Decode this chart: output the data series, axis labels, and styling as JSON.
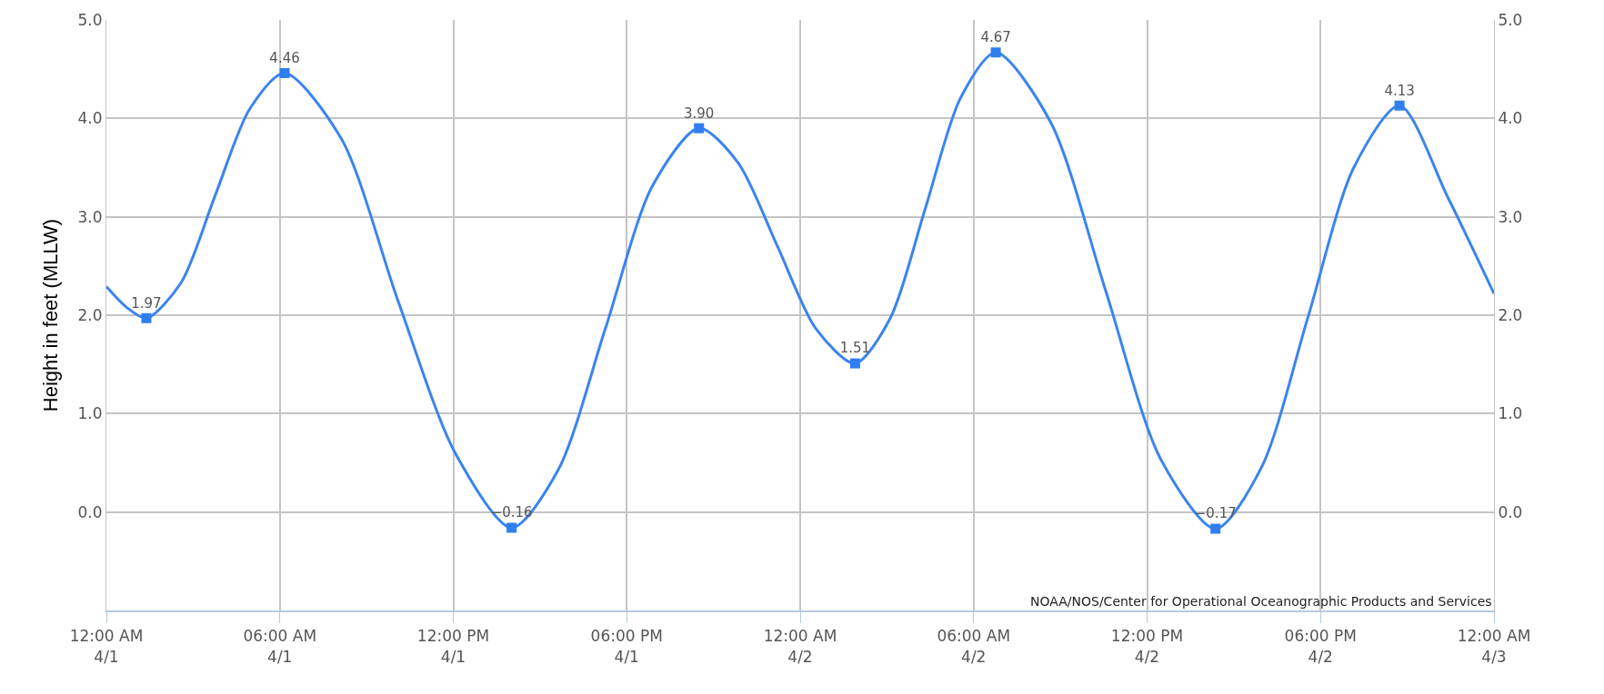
{
  "chart_data": {
    "type": "line",
    "ylabel": "Height in feet (MLLW)",
    "xlim": [
      "--04-01T00:00",
      "--04-03T00:00"
    ],
    "xticks": [
      {
        "value": "--04-01T00:00",
        "label": "12:00 AM\n4/1"
      },
      {
        "value": "--04-01T06:00",
        "label": "06:00 AM\n4/1"
      },
      {
        "value": "--04-01T12:00",
        "label": "12:00 PM\n4/1"
      },
      {
        "value": "--04-01T18:00",
        "label": "06:00 PM\n4/1"
      },
      {
        "value": "--04-02T00:00",
        "label": "12:00 AM\n4/2"
      },
      {
        "value": "--04-02T06:00",
        "label": "06:00 AM\n4/2"
      },
      {
        "value": "--04-02T12:00",
        "label": "12:00 PM\n4/2"
      },
      {
        "value": "--04-02T18:00",
        "label": "06:00 PM\n4/2"
      },
      {
        "value": "--04-03T00:00",
        "label": "12:00 AM\n4/3"
      }
    ],
    "ylim": [
      -1,
      5
    ],
    "yticks": [
      {
        "value": -1,
        "label": null
      },
      {
        "value": 0,
        "label": "0.0"
      },
      {
        "value": 1,
        "label": "1.0"
      },
      {
        "value": 2,
        "label": "2.0"
      },
      {
        "value": 3,
        "label": "3.0"
      },
      {
        "value": 4,
        "label": "4.0"
      },
      {
        "value": 5,
        "label": "5.0"
      }
    ],
    "y2lim": [
      -1,
      5
    ],
    "y2ticks": [
      {
        "value": -1,
        "label": null
      },
      {
        "value": 0,
        "label": "0.0"
      },
      {
        "value": 1,
        "label": "1.0"
      },
      {
        "value": 2,
        "label": "2.0"
      },
      {
        "value": 3,
        "label": "3.0"
      },
      {
        "value": 4,
        "label": "4.0"
      },
      {
        "value": 5,
        "label": "5.0"
      }
    ],
    "grid": true,
    "legend": false,
    "annotations": [
      "NOAA/NOS/Center for Operational Oceanographic Products and Services"
    ],
    "series": [
      {
        "color": "#3a84f0",
        "marker": "none",
        "x": [
          "--04-01T00:00",
          "--04-01T00:42",
          "--04-01T01:23",
          "--04-01T02:35",
          "--04-01T03:46",
          "--04-01T04:58",
          "--04-01T06:10",
          "--04-01T08:08",
          "--04-01T10:05",
          "--04-01T12:04",
          "--04-01T14:01",
          "--04-01T15:38",
          "--04-01T17:16",
          "--04-01T18:53",
          "--04-01T20:30",
          "--04-01T21:51",
          "--04-01T23:12",
          "--04-02T00:33",
          "--04-02T01:54",
          "--04-02T03:07",
          "--04-02T04:20",
          "--04-02T05:33",
          "--04-02T06:46",
          "--04-02T08:40",
          "--04-02T10:34",
          "--04-02T12:28",
          "--04-02T14:22",
          "--04-02T15:58",
          "--04-02T17:34",
          "--04-02T19:09",
          "--04-02T20:44",
          "--04-02T22:24",
          "--04-03T00:00"
        ],
        "values": [
          2.29,
          2.08,
          1.97,
          2.33,
          3.22,
          4.1,
          4.46,
          3.79,
          2.15,
          0.6,
          -0.16,
          0.43,
          1.87,
          3.31,
          3.9,
          3.55,
          2.71,
          1.86,
          1.51,
          1.97,
          3.09,
          4.21,
          4.67,
          3.96,
          2.25,
          0.54,
          -0.17,
          0.46,
          1.98,
          3.5,
          4.13,
          3.2,
          2.22
        ]
      },
      {
        "type": "scatter",
        "color": "#2f7ff0",
        "marker": "square",
        "data_labels": true,
        "x": [
          "--04-01T01:23",
          "--04-01T06:10",
          "--04-01T14:01",
          "--04-01T20:30",
          "--04-02T01:54",
          "--04-02T06:46",
          "--04-02T14:22",
          "--04-02T20:44"
        ],
        "values": [
          1.97,
          4.46,
          -0.16,
          3.9,
          1.51,
          4.67,
          -0.17,
          4.13
        ],
        "value_labels": [
          "1.97",
          "4.46",
          "−0.16",
          "3.90",
          "1.51",
          "4.67",
          "−0.17",
          "4.13"
        ]
      }
    ]
  }
}
